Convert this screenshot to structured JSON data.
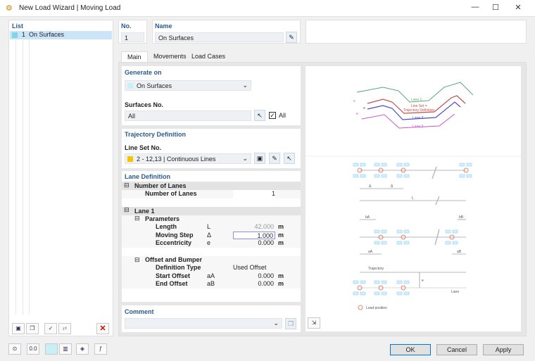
{
  "window": {
    "title": "New Load Wizard | Moving Load",
    "controls": [
      "minimize",
      "maximize",
      "close"
    ]
  },
  "list": {
    "header": "List",
    "items": [
      {
        "no": "1",
        "label": "On Surfaces",
        "color": "#7fd6e8"
      }
    ]
  },
  "header": {
    "no_label": "No.",
    "no_value": "1",
    "name_label": "Name",
    "name_value": "On Surfaces"
  },
  "tabs": [
    {
      "label": "Main",
      "active": true
    },
    {
      "label": "Movements"
    },
    {
      "label": "Load Cases"
    }
  ],
  "generate_on": {
    "header": "Generate on",
    "type": "On Surfaces",
    "surfaces_label": "Surfaces No.",
    "surfaces_value": "All",
    "all_label": "All",
    "all_checked": true
  },
  "trajectory": {
    "header": "Trajectory Definition",
    "line_set_label": "Line Set No.",
    "line_set_value": "2 - 12,13 | Continuous Lines",
    "line_set_color": "#f5c400"
  },
  "lane_definition": {
    "header": "Lane Definition",
    "groups": [
      {
        "label": "Number of Lanes",
        "rows": [
          {
            "name": "Number of Lanes",
            "symbol": "",
            "value": "1",
            "unit": ""
          }
        ]
      },
      {
        "label": "Lane 1",
        "subgroups": [
          {
            "label": "Parameters",
            "rows": [
              {
                "name": "Length",
                "symbol": "L",
                "value": "42.000",
                "unit": "m",
                "readonly": true
              },
              {
                "name": "Moving Step",
                "symbol": "Δ",
                "value": "1.000",
                "unit": "m",
                "active": true
              },
              {
                "name": "Eccentricity",
                "symbol": "e",
                "value": "0.000",
                "unit": "m"
              }
            ]
          },
          {
            "label": "Offset and Bumper",
            "rows": [
              {
                "name": "Definition Type",
                "symbol": "",
                "value": "Used Offset",
                "unit": ""
              },
              {
                "name": "Start Offset",
                "symbol": "aA",
                "value": "0.000",
                "unit": "m"
              },
              {
                "name": "End Offset",
                "symbol": "aB",
                "value": "0.000",
                "unit": "m"
              }
            ]
          }
        ]
      }
    ]
  },
  "comment": {
    "header": "Comment",
    "value": ""
  },
  "diagram": {
    "lane1": "Lane 1",
    "line_set_1": "Line Set =",
    "line_set_2": "Trajectory Definition",
    "lane2": "Lane 2",
    "lane3": "Lane 3",
    "e": "e",
    "delta": "Δ",
    "L": "L",
    "bA": "bA",
    "bB": "bB",
    "aA": "aA",
    "aB": "aB",
    "trajectory": "Trajectory",
    "lane": "Lane",
    "legend": "Load position",
    "colors": {
      "lane1": "#5aaa7a",
      "lineset": "#c0504d",
      "lane2": "#4b4bc8",
      "lane3": "#cc55cc",
      "wheel": "#8fd0f0",
      "load": "#e8826a"
    }
  },
  "buttons": {
    "ok": "OK",
    "cancel": "Cancel",
    "apply": "Apply"
  }
}
